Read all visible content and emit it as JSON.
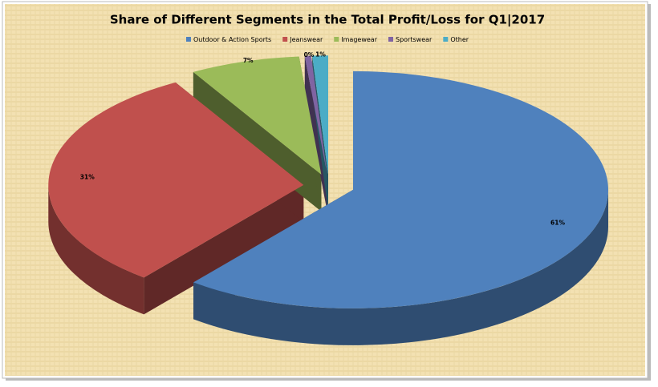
{
  "chart_data": {
    "type": "pie",
    "title": "Share of Different Segments in the Total Profit/Loss for Q1|2017",
    "categories": [
      "Outdoor & Action Sports",
      "Jeanswear",
      "Imagewear",
      "Sportswear",
      "Other"
    ],
    "values": [
      61,
      31,
      7,
      0.4,
      1
    ],
    "value_labels": [
      "61%",
      "31%",
      "7%",
      "0%",
      "1%"
    ],
    "colors": [
      "#4f81bd",
      "#c0504d",
      "#9bbb59",
      "#8064a2",
      "#4bacc6"
    ],
    "legend": "top"
  }
}
